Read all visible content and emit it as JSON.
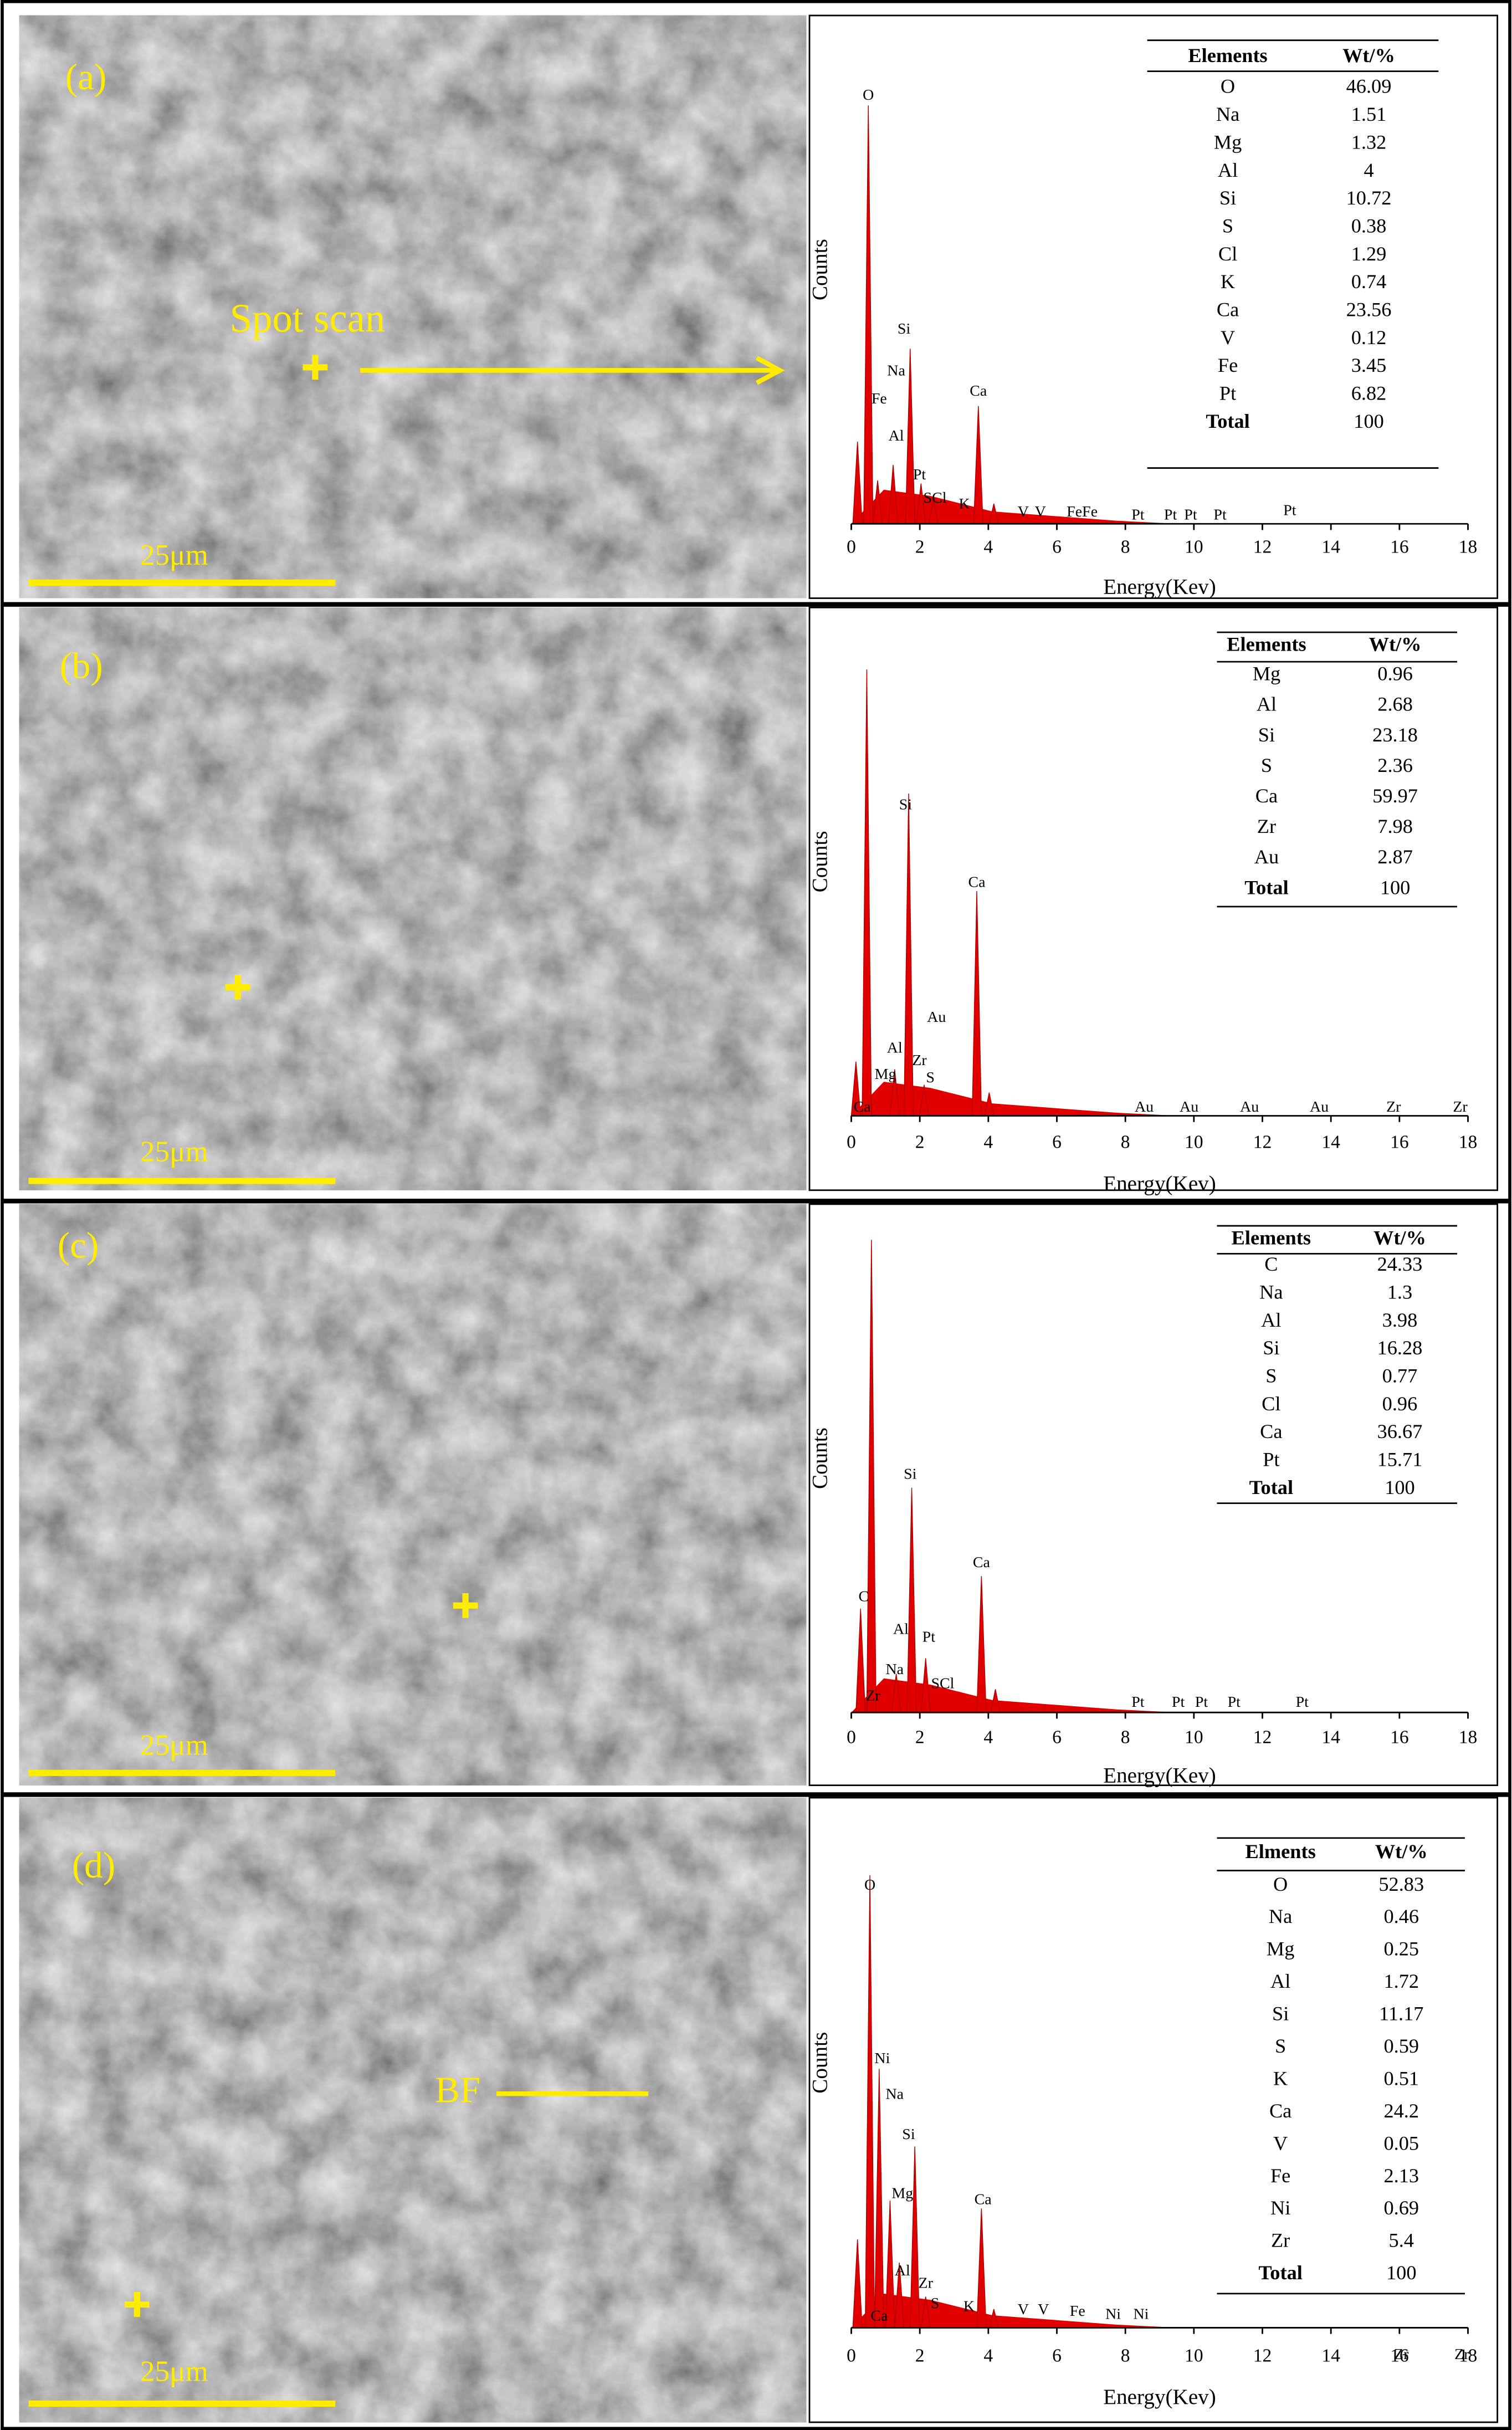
{
  "panels": [
    {
      "label": "(a)",
      "scale_bar": "25μm",
      "annotation": "Spot scan",
      "spectrum": {
        "y_label": "Counts",
        "x_label": "Energy(Kev)",
        "xticks": [
          0,
          2,
          4,
          6,
          8,
          10,
          12,
          14,
          16,
          18
        ],
        "peak_labels": [
          "O",
          "Si",
          "Na",
          "Fe",
          "Al",
          "Pt",
          "SCl",
          "K",
          "Ca",
          "V",
          "V",
          "FeFe",
          "Pt",
          "Pt",
          "Pt",
          "Pt",
          "Pt"
        ]
      },
      "table": {
        "header": [
          "Elements",
          "Wt/%"
        ],
        "rows": [
          [
            "O",
            46.09
          ],
          [
            "Na",
            1.51
          ],
          [
            "Mg",
            1.32
          ],
          [
            "Al",
            4
          ],
          [
            "Si",
            10.72
          ],
          [
            "S",
            0.38
          ],
          [
            "Cl",
            1.29
          ],
          [
            "K",
            0.74
          ],
          [
            "Ca",
            23.56
          ],
          [
            "V",
            0.12
          ],
          [
            "Fe",
            3.45
          ],
          [
            "Pt",
            6.82
          ],
          [
            "Total",
            100
          ]
        ]
      }
    },
    {
      "label": "(b)",
      "scale_bar": "25μm",
      "spectrum": {
        "y_label": "Counts",
        "x_label": "Energy(Kev)",
        "xticks": [
          0,
          2,
          4,
          6,
          8,
          10,
          12,
          14,
          16,
          18
        ],
        "peak_labels": [
          "Si",
          "Ca",
          "Au",
          "Al",
          "Zr",
          "Mg",
          "S",
          "Ca",
          "Au",
          "Au",
          "Au",
          "Au",
          "Zr",
          "Zr"
        ]
      },
      "table": {
        "header": [
          "Elements",
          "Wt/%"
        ],
        "rows": [
          [
            "Mg",
            0.96
          ],
          [
            "Al",
            2.68
          ],
          [
            "Si",
            23.18
          ],
          [
            "S",
            2.36
          ],
          [
            "Ca",
            59.97
          ],
          [
            "Zr",
            7.98
          ],
          [
            "Au",
            2.87
          ],
          [
            "Total",
            100
          ]
        ]
      }
    },
    {
      "label": "(c)",
      "scale_bar": "25μm",
      "spectrum": {
        "y_label": "Counts",
        "x_label": "Energy(Kev)",
        "xticks": [
          0,
          2,
          4,
          6,
          8,
          10,
          12,
          14,
          16,
          18
        ],
        "peak_labels": [
          "C",
          "Si",
          "Ca",
          "Al",
          "Pt",
          "Na",
          "SCl",
          "Zr",
          "Pt",
          "Pt",
          "Pt",
          "Pt",
          "Pt"
        ]
      },
      "table": {
        "header": [
          "Elements",
          "Wt/%"
        ],
        "rows": [
          [
            "C",
            24.33
          ],
          [
            "Na",
            1.3
          ],
          [
            "Al",
            3.98
          ],
          [
            "Si",
            16.28
          ],
          [
            "S",
            0.77
          ],
          [
            "Cl",
            0.96
          ],
          [
            "Ca",
            36.67
          ],
          [
            "Pt",
            15.71
          ],
          [
            "Total",
            100
          ]
        ]
      }
    },
    {
      "label": "(d)",
      "scale_bar": "25μm",
      "annotation": "BF",
      "spectrum": {
        "y_label": "Counts",
        "x_label": "Energy(Kev)",
        "xticks": [
          0,
          2,
          4,
          6,
          8,
          10,
          12,
          14,
          16,
          18
        ],
        "peak_labels": [
          "O",
          "Ni",
          "Na",
          "Si",
          "Mg",
          "Ca",
          "Al",
          "Zr",
          "S",
          "Ca",
          "K",
          "V",
          "V",
          "Fe",
          "Ni",
          "Ni",
          "Zr",
          "Zr"
        ]
      },
      "table": {
        "header": [
          "Elments",
          "Wt/%"
        ],
        "rows": [
          [
            "O",
            52.83
          ],
          [
            "Na",
            0.46
          ],
          [
            "Mg",
            0.25
          ],
          [
            "Al",
            1.72
          ],
          [
            "Si",
            11.17
          ],
          [
            "S",
            0.59
          ],
          [
            "K",
            0.51
          ],
          [
            "Ca",
            24.2
          ],
          [
            "V",
            0.05
          ],
          [
            "Fe",
            2.13
          ],
          [
            "Ni",
            0.69
          ],
          [
            "Zr",
            5.4
          ],
          [
            "Total",
            100
          ]
        ]
      }
    }
  ]
}
